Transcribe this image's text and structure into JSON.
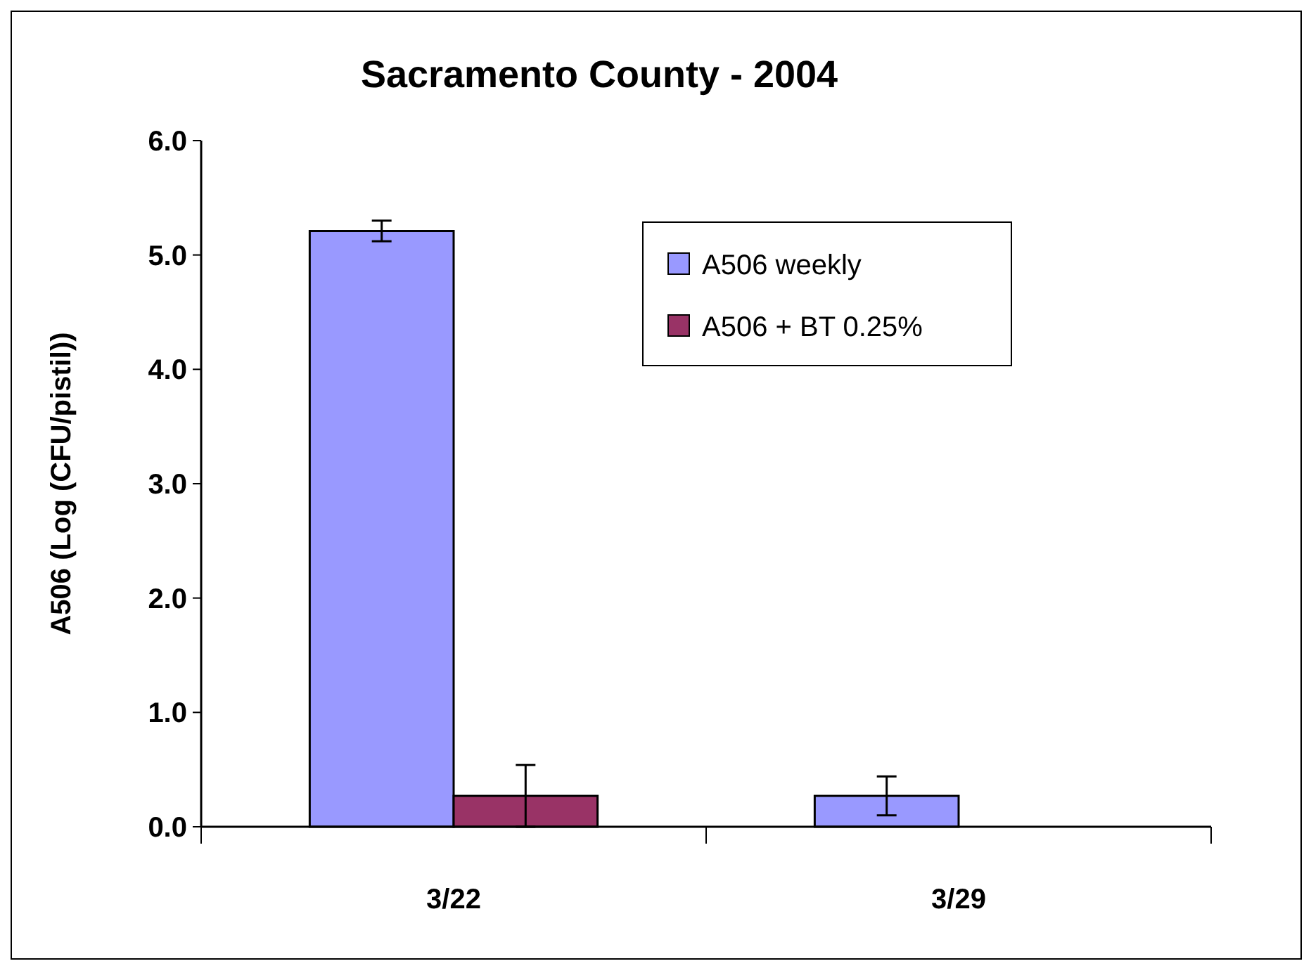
{
  "chart_data": {
    "type": "bar",
    "title": "Sacramento County - 2004",
    "ylabel": "A506 (Log (CFU/pistil))",
    "categories": [
      "3/22",
      "3/29"
    ],
    "series": [
      {
        "name": "A506 weekly",
        "color": "#9999ff",
        "values": [
          5.21,
          0.27
        ],
        "errors": [
          0.09,
          0.17
        ]
      },
      {
        "name": "A506 + BT 0.25%",
        "color": "#993366",
        "values": [
          0.27,
          0
        ],
        "errors": [
          0.27,
          null
        ]
      }
    ],
    "ylim": [
      0,
      6
    ],
    "yticks": [
      {
        "value": 0,
        "label": "0.0"
      },
      {
        "value": 1,
        "label": "1.0"
      },
      {
        "value": 2,
        "label": "2.0"
      },
      {
        "value": 3,
        "label": "3.0"
      },
      {
        "value": 4,
        "label": "4.0"
      },
      {
        "value": 5,
        "label": "5.0"
      },
      {
        "value": 6,
        "label": "6.0"
      }
    ],
    "grid": false,
    "legend": "top right"
  }
}
